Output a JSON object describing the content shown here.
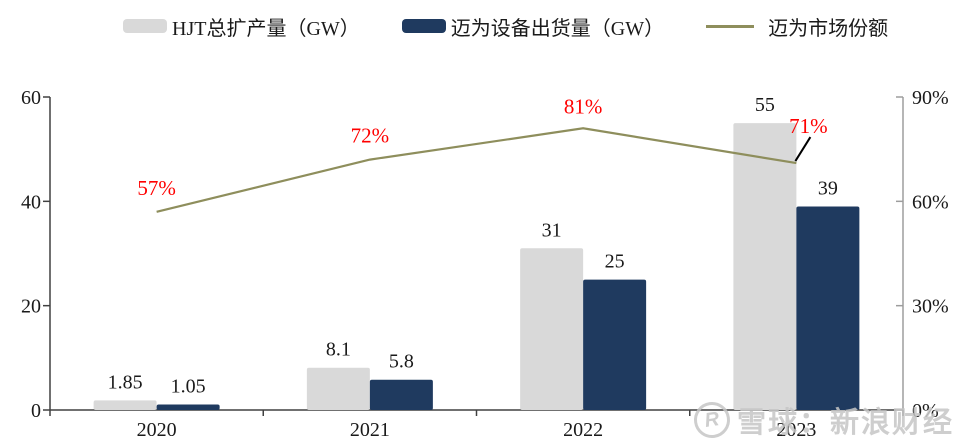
{
  "legend": {
    "items": [
      {
        "label": "HJT总扩产量（GW）",
        "swatch": "bar",
        "color": "#d9d9d9"
      },
      {
        "label": "迈为设备出货量（GW）",
        "swatch": "bar",
        "color": "#1f3a5f"
      },
      {
        "label": "迈为市场份额",
        "swatch": "line",
        "color": "#8e8e5c"
      }
    ]
  },
  "chart_data": {
    "type": "bar",
    "title": "",
    "categories": [
      "2020",
      "2021",
      "2022",
      "2023"
    ],
    "series": [
      {
        "name": "HJT总扩产量（GW）",
        "type": "bar",
        "axis": "left",
        "color": "#d9d9d9",
        "values": [
          1.85,
          8.1,
          31,
          55
        ],
        "value_labels": [
          "1.85",
          "8.1",
          "31",
          "55"
        ]
      },
      {
        "name": "迈为设备出货量（GW）",
        "type": "bar",
        "axis": "left",
        "color": "#1f3a5f",
        "values": [
          1.05,
          5.8,
          25,
          39
        ],
        "value_labels": [
          "1.05",
          "5.8",
          "25",
          "39"
        ]
      },
      {
        "name": "迈为市场份额",
        "type": "line",
        "axis": "right",
        "color": "#8e8e5c",
        "label_color": "#ff0000",
        "values": [
          57,
          72,
          81,
          71
        ],
        "value_labels": [
          "57%",
          "72%",
          "81%",
          "71%"
        ]
      }
    ],
    "left_axis": {
      "range": [
        0,
        60
      ],
      "tick_values": [
        0,
        20,
        40,
        60
      ],
      "tick_labels": [
        "0",
        "20",
        "40",
        "60"
      ]
    },
    "right_axis": {
      "range": [
        0,
        90
      ],
      "tick_values": [
        0,
        30,
        60,
        90
      ],
      "tick_labels": [
        "0%",
        "30%",
        "60%",
        "90%"
      ]
    },
    "grid": "off",
    "legend_position": "top"
  },
  "watermark": {
    "logo": "xueqiu",
    "logo_letter": "R",
    "text": "雪球：新浪财经"
  }
}
